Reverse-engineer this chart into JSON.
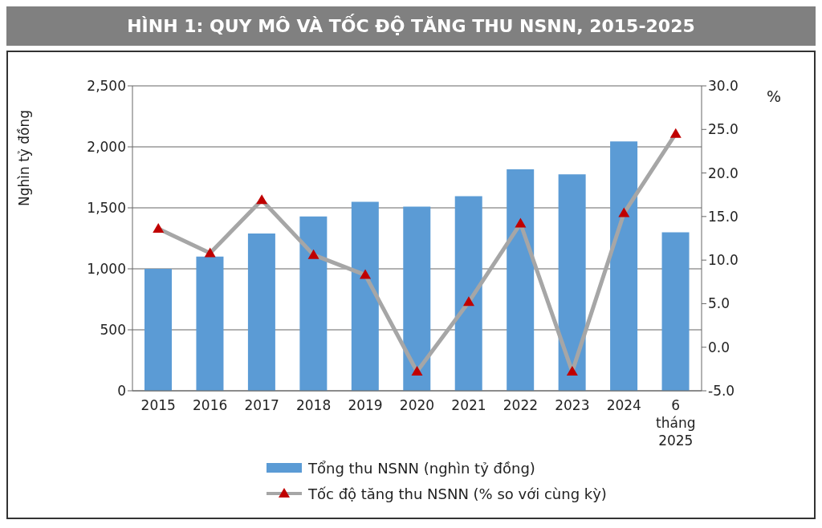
{
  "chart_data": {
    "type": "bar",
    "title": "HÌNH 1: QUY MÔ VÀ TỐC ĐỘ TĂNG THU NSNN, 2015-2025",
    "ylabel": "Nghìn tỷ đồng",
    "y2label": "%",
    "categories": [
      "2015",
      "2016",
      "2017",
      "2018",
      "2019",
      "2020",
      "2021",
      "2022",
      "2023",
      "2024",
      "6 tháng 2025"
    ],
    "series": [
      {
        "name": "Tổng thu NSNN (nghìn tỷ đồng)",
        "color": "#5b9bd5",
        "values": [
          1000,
          1100,
          1290,
          1430,
          1550,
          1510,
          1595,
          1815,
          1775,
          2045,
          1300
        ]
      },
      {
        "name": "Tốc độ tăng thu NSNN (% so với cùng kỳ)",
        "type": "line",
        "axis": "y2",
        "color": "#a6a6a6",
        "colors": [
          "#c00000",
          "#c00000",
          "#c00000",
          "#c00000",
          "#c00000",
          "#c00000",
          "#c00000",
          "#c00000",
          "#c00000",
          "#c00000",
          "#c00000"
        ],
        "marker": "triangle",
        "values": [
          13.6,
          10.8,
          16.9,
          10.6,
          8.3,
          -2.8,
          5.2,
          14.2,
          -2.8,
          15.4,
          24.5
        ]
      }
    ],
    "ylim": [
      0,
      2500
    ],
    "yticks": [
      0,
      {
        "value": 500,
        "label": "500"
      },
      {
        "value": 1000,
        "label": "1,000"
      },
      {
        "value": 1500,
        "label": "1,500"
      },
      {
        "value": 2000,
        "label": "2,000"
      },
      {
        "value": 2500,
        "label": "2,500"
      }
    ],
    "y2lim": [
      -5,
      30
    ],
    "y2ticks": [
      {
        "value": -5,
        "label": "-5.0"
      },
      {
        "value": 0,
        "label": "0.0"
      },
      {
        "value": 5,
        "label": "5.0"
      },
      {
        "value": 10,
        "label": "10.0"
      },
      {
        "value": 15,
        "label": "15.0"
      },
      {
        "value": 20,
        "label": "20.0"
      },
      {
        "value": 25,
        "label": "25.0"
      },
      {
        "value": 30,
        "label": "30.0"
      }
    ],
    "grid": "y",
    "legend": "bottom"
  }
}
